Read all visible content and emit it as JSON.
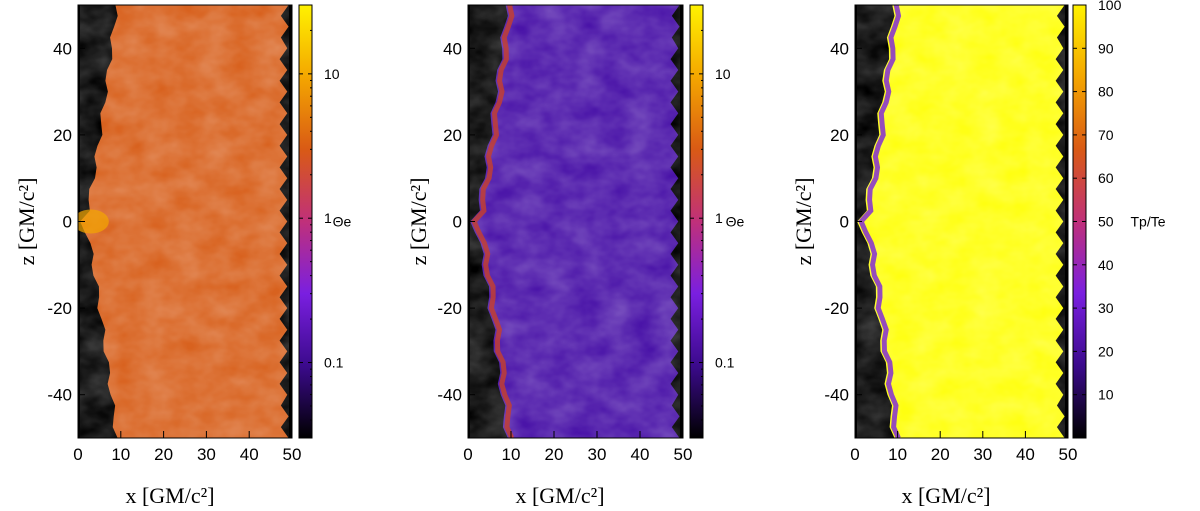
{
  "chart_data": [
    {
      "type": "heatmap",
      "panel": "left",
      "xlabel": "x [GM/c²]",
      "ylabel": "z [GM/c²]",
      "xlim": [
        0,
        50
      ],
      "ylim": [
        -50,
        50
      ],
      "x_ticks": [
        0,
        10,
        20,
        30,
        40,
        50
      ],
      "y_ticks": [
        -40,
        -20,
        0,
        20,
        40
      ],
      "colorbar": {
        "label": "Θe",
        "scale": "log",
        "range": [
          0.03,
          30
        ],
        "tick_labels": [
          {
            "value": 10,
            "label": "10"
          },
          {
            "value": 1,
            "label": "1"
          },
          {
            "value": 0.1,
            "label": "0.1"
          }
        ],
        "colormap": [
          "#000000",
          "#3b0a8c",
          "#7a1fe0",
          "#c0307a",
          "#d95a15",
          "#f4a600",
          "#fff200"
        ]
      },
      "dominant_color": "#d8621f",
      "unfilled_region_color": "#000000"
    },
    {
      "type": "heatmap",
      "panel": "middle",
      "xlabel": "x [GM/c²]",
      "ylabel": "z [GM/c²]",
      "xlim": [
        0,
        50
      ],
      "ylim": [
        -50,
        50
      ],
      "x_ticks": [
        0,
        10,
        20,
        30,
        40,
        50
      ],
      "y_ticks": [
        -40,
        -20,
        0,
        20,
        40
      ],
      "colorbar": {
        "label": "Θe",
        "scale": "log",
        "range": [
          0.03,
          30
        ],
        "tick_labels": [
          {
            "value": 10,
            "label": "10"
          },
          {
            "value": 1,
            "label": "1"
          },
          {
            "value": 0.1,
            "label": "0.1"
          }
        ],
        "colormap": [
          "#000000",
          "#3b0a8c",
          "#7a1fe0",
          "#c0307a",
          "#d95a15",
          "#f4a600",
          "#fff200"
        ]
      },
      "dominant_color": "#4a14a8",
      "unfilled_region_color": "#000000"
    },
    {
      "type": "heatmap",
      "panel": "right",
      "xlabel": "x [GM/c²]",
      "ylabel": "z [GM/c²]",
      "xlim": [
        0,
        50
      ],
      "ylim": [
        -50,
        50
      ],
      "x_ticks": [
        0,
        10,
        20,
        30,
        40,
        50
      ],
      "y_ticks": [
        -40,
        -20,
        0,
        20,
        40
      ],
      "colorbar": {
        "label": "Tp/Te",
        "scale": "linear",
        "range": [
          0,
          100
        ],
        "tick_labels": [
          {
            "value": 100,
            "label": "100"
          },
          {
            "value": 90,
            "label": "90"
          },
          {
            "value": 80,
            "label": "80"
          },
          {
            "value": 70,
            "label": "70"
          },
          {
            "value": 60,
            "label": "60"
          },
          {
            "value": 50,
            "label": "50"
          },
          {
            "value": 40,
            "label": "40"
          },
          {
            "value": 30,
            "label": "30"
          },
          {
            "value": 20,
            "label": "20"
          },
          {
            "value": 10,
            "label": "10"
          }
        ],
        "colormap": [
          "#000000",
          "#3b0a8c",
          "#7a1fe0",
          "#c0307a",
          "#d95a15",
          "#f4a600",
          "#fff200"
        ]
      },
      "dominant_color": "#ffff10",
      "unfilled_region_color": "#000000"
    }
  ]
}
